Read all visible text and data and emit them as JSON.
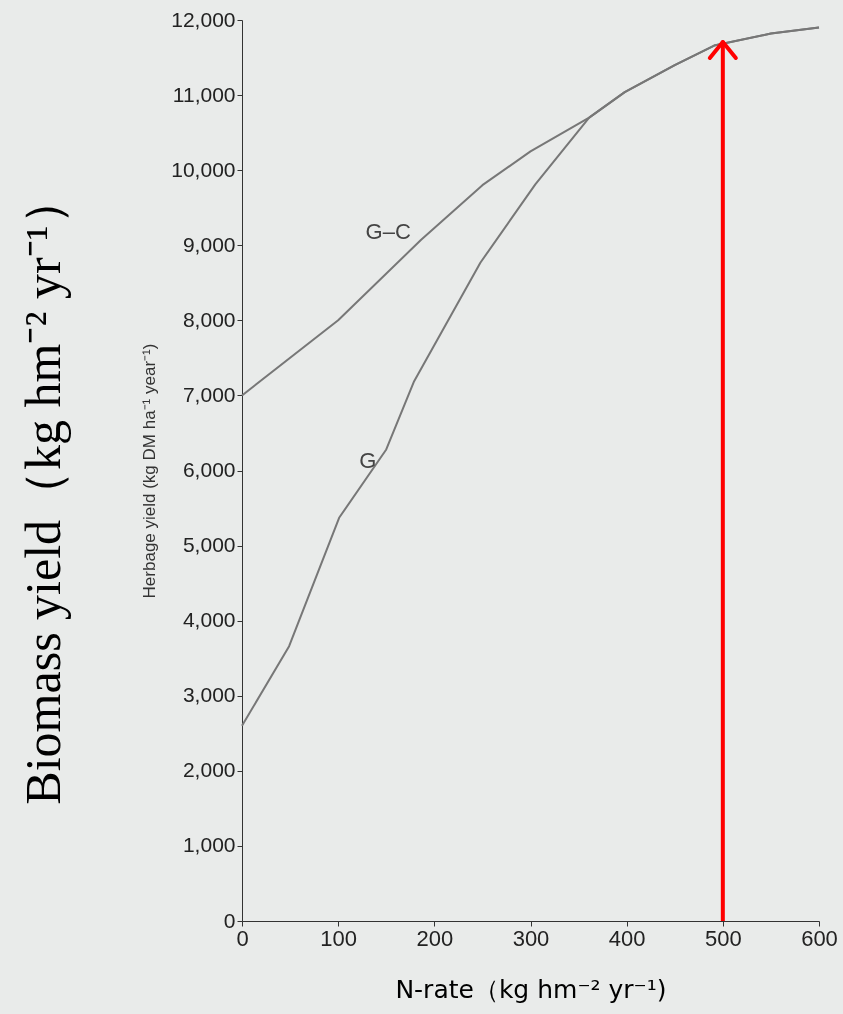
{
  "chart_data": {
    "type": "line",
    "xlabel": "N-rate（kg hm⁻² yr⁻¹)",
    "ylabel": "Herbage yield (kg DM ha⁻¹ year⁻¹)",
    "annotations": [
      "Biomass yield（kg hm⁻² yr⁻¹）"
    ],
    "series": [
      {
        "name": "G–C",
        "color": "#777777",
        "x": [
          0,
          100,
          186,
          250,
          300,
          361,
          398,
          450,
          491,
          550,
          600
        ],
        "values": [
          7000,
          8000,
          9070,
          9800,
          10250,
          10700,
          11040,
          11400,
          11660,
          11820,
          11900
        ]
      },
      {
        "name": "G",
        "color": "#777777",
        "x": [
          0,
          49,
          101,
          150,
          179,
          248,
          305,
          361,
          398,
          450,
          491,
          550,
          600
        ],
        "values": [
          2600,
          3660,
          5370,
          6280,
          7190,
          8770,
          9810,
          10700,
          11040,
          11400,
          11660,
          11820,
          11900
        ]
      }
    ],
    "xlim": [
      0,
      600
    ],
    "xticks": [
      0,
      100,
      200,
      300,
      400,
      500,
      600
    ],
    "ylim": [
      0,
      12000
    ],
    "yticks": [
      0,
      {
        "value": 1000,
        "label": "1,000"
      },
      {
        "value": 2000,
        "label": "2,000"
      },
      {
        "value": 3000,
        "label": "3,000"
      },
      {
        "value": 4000,
        "label": "4,000"
      },
      {
        "value": 5000,
        "label": "5,000"
      },
      {
        "value": 6000,
        "label": "6,000"
      },
      {
        "value": 7000,
        "label": "7,000"
      },
      {
        "value": 8000,
        "label": "8,000"
      },
      {
        "value": 9000,
        "label": "9,000"
      },
      {
        "value": 10000,
        "label": "10,000"
      },
      {
        "value": 11000,
        "label": "11,000"
      },
      {
        "value": 12000,
        "label": "12,000"
      }
    ],
    "ref_lines": [
      {
        "axis": "x",
        "value": 500,
        "color": "#ff0000"
      }
    ],
    "grid": false,
    "legend": false,
    "marker": "none",
    "line_style": "solid"
  }
}
